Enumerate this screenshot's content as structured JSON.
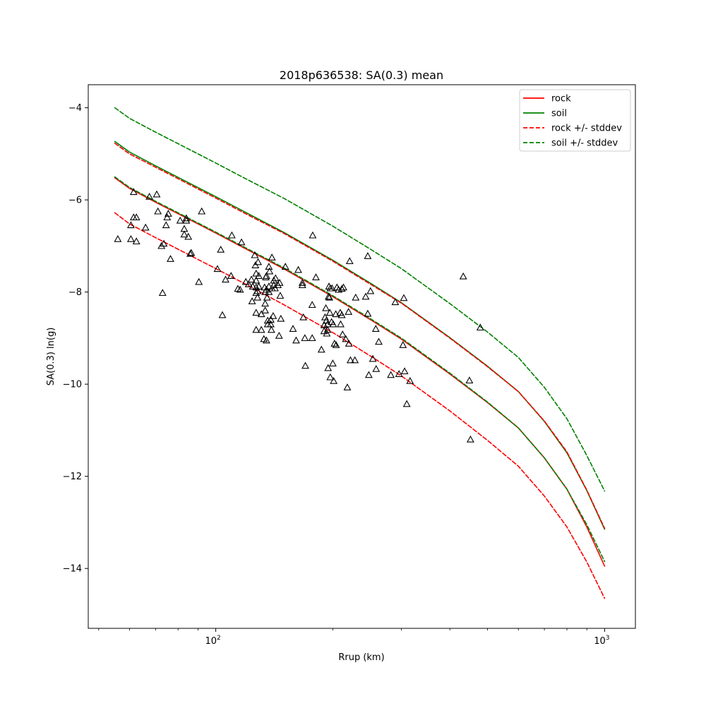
{
  "chart_data": {
    "type": "line",
    "title": "2018p636538: SA(0.3) mean",
    "xlabel": "Rrup (km)",
    "ylabel": "SA(0.3) ln(g)",
    "xscale": "log",
    "xlim": [
      47,
      1200
    ],
    "ylim": [
      -15.3,
      -3.5
    ],
    "x_ticks": [
      {
        "value": 100,
        "label": "10",
        "exp": "2"
      },
      {
        "value": 1000,
        "label": "10",
        "exp": "3"
      }
    ],
    "y_ticks": [
      -4,
      -6,
      -8,
      -10,
      -12,
      -14
    ],
    "y_tick_labels": [
      "−4",
      "−6",
      "−8",
      "−10",
      "−12",
      "−14"
    ],
    "legend_position": "upper right",
    "grid": false,
    "series": [
      {
        "name": "rock",
        "color": "#ff0000",
        "dash": "solid",
        "x": [
          55,
          60,
          70,
          80,
          100,
          120,
          150,
          200,
          250,
          300,
          400,
          500,
          600,
          700,
          800,
          900,
          1000
        ],
        "y": [
          -5.52,
          -5.75,
          -6.05,
          -6.3,
          -6.72,
          -7.07,
          -7.5,
          -8.1,
          -8.6,
          -9.02,
          -9.78,
          -10.4,
          -10.95,
          -11.6,
          -12.28,
          -13.1,
          -13.95
        ]
      },
      {
        "name": "soil",
        "color": "#008000",
        "dash": "solid",
        "x": [
          55,
          60,
          70,
          80,
          100,
          120,
          150,
          200,
          250,
          300,
          400,
          500,
          600,
          700,
          800,
          900,
          1000
        ],
        "y": [
          -4.73,
          -4.96,
          -5.26,
          -5.51,
          -5.93,
          -6.28,
          -6.71,
          -7.31,
          -7.81,
          -8.23,
          -8.99,
          -9.61,
          -10.16,
          -10.81,
          -11.49,
          -12.31,
          -13.15
        ]
      },
      {
        "name": "rock +/- stddev",
        "color": "#ff0000",
        "dash": "dashed",
        "x": [
          55,
          60,
          70,
          80,
          100,
          120,
          150,
          200,
          250,
          300,
          400,
          500,
          600,
          700,
          800,
          900,
          1000
        ],
        "y": [
          -6.28,
          -6.52,
          -6.82,
          -7.07,
          -7.49,
          -7.84,
          -8.28,
          -8.88,
          -9.39,
          -9.82,
          -10.58,
          -11.22,
          -11.78,
          -12.43,
          -13.1,
          -13.86,
          -14.65
        ]
      },
      {
        "name": "",
        "color": "#ff0000",
        "dash": "dashed",
        "x": [
          55,
          60,
          70,
          80,
          100,
          120,
          150,
          200,
          250,
          300,
          400,
          500,
          600,
          700,
          800,
          900,
          1000
        ],
        "y": [
          -4.77,
          -5.0,
          -5.29,
          -5.54,
          -5.96,
          -6.31,
          -6.73,
          -7.33,
          -7.83,
          -8.24,
          -9.0,
          -9.62,
          -10.16,
          -10.8,
          -11.47,
          -12.3,
          -13.13
        ]
      },
      {
        "name": "soil +/- stddev",
        "color": "#008000",
        "dash": "dashed",
        "x": [
          55,
          60,
          70,
          80,
          100,
          120,
          150,
          200,
          250,
          300,
          400,
          500,
          600,
          700,
          800,
          900,
          1000
        ],
        "y": [
          -4.0,
          -4.23,
          -4.53,
          -4.78,
          -5.2,
          -5.55,
          -5.97,
          -6.57,
          -7.07,
          -7.49,
          -8.25,
          -8.87,
          -9.42,
          -10.07,
          -10.75,
          -11.55,
          -12.32
        ]
      },
      {
        "name": "",
        "color": "#008000",
        "dash": "dashed",
        "x": [
          55,
          60,
          70,
          80,
          100,
          120,
          150,
          200,
          250,
          300,
          400,
          500,
          600,
          700,
          800,
          900,
          1000
        ],
        "y": [
          -5.5,
          -5.73,
          -6.03,
          -6.28,
          -6.7,
          -7.05,
          -7.48,
          -8.08,
          -8.58,
          -9.0,
          -9.76,
          -10.39,
          -10.95,
          -11.6,
          -12.28,
          -13.05,
          -13.85
        ]
      }
    ],
    "observations": [
      [
        56,
        -6.85
      ],
      [
        60.5,
        -6.55
      ],
      [
        60.5,
        -6.85
      ],
      [
        61.5,
        -5.83
      ],
      [
        61.5,
        -6.38
      ],
      [
        62.5,
        -6.38
      ],
      [
        62.5,
        -6.9
      ],
      [
        66,
        -6.6
      ],
      [
        67.5,
        -5.93
      ],
      [
        70.5,
        -5.88
      ],
      [
        71,
        -6.25
      ],
      [
        72.5,
        -7.0
      ],
      [
        73,
        -8.02
      ],
      [
        73.5,
        -6.95
      ],
      [
        74.5,
        -6.55
      ],
      [
        75,
        -6.38
      ],
      [
        75.5,
        -6.3
      ],
      [
        76.5,
        -7.28
      ],
      [
        81,
        -6.45
      ],
      [
        83,
        -6.75
      ],
      [
        83,
        -6.63
      ],
      [
        84,
        -6.4
      ],
      [
        84,
        -6.45
      ],
      [
        85,
        -6.8
      ],
      [
        86,
        -7.17
      ],
      [
        86.5,
        -7.15
      ],
      [
        90.5,
        -7.78
      ],
      [
        92,
        -6.25
      ],
      [
        101,
        -7.5
      ],
      [
        103,
        -7.08
      ],
      [
        104,
        -8.5
      ],
      [
        106,
        -7.73
      ],
      [
        109.5,
        -7.65
      ],
      [
        110,
        -6.77
      ],
      [
        114,
        -7.93
      ],
      [
        115.5,
        -7.95
      ],
      [
        116.5,
        -6.92
      ],
      [
        119.5,
        -7.78
      ],
      [
        121.5,
        -7.83
      ],
      [
        123.5,
        -7.73
      ],
      [
        124,
        -8.2
      ],
      [
        124.5,
        -7.88
      ],
      [
        126,
        -7.2
      ],
      [
        126.5,
        -7.42
      ],
      [
        127,
        -7.6
      ],
      [
        127,
        -7.75
      ],
      [
        127,
        -7.9
      ],
      [
        127,
        -8.02
      ],
      [
        127,
        -8.45
      ],
      [
        127,
        -8.82
      ],
      [
        128,
        -7.98
      ],
      [
        128,
        -8.12
      ],
      [
        128.5,
        -7.35
      ],
      [
        129,
        -7.65
      ],
      [
        129,
        -7.88
      ],
      [
        131,
        -8.48
      ],
      [
        131,
        -8.82
      ],
      [
        133,
        -9.02
      ],
      [
        133.5,
        -7.9
      ],
      [
        134,
        -8.0
      ],
      [
        134,
        -8.25
      ],
      [
        134,
        -8.4
      ],
      [
        134.5,
        -7.68
      ],
      [
        135,
        -7.65
      ],
      [
        135,
        -7.95
      ],
      [
        135,
        -9.05
      ],
      [
        135.5,
        -8.12
      ],
      [
        136,
        -8.62
      ],
      [
        136,
        -8.7
      ],
      [
        137,
        -7.45
      ],
      [
        137,
        -7.88
      ],
      [
        137,
        -8.0
      ],
      [
        137.5,
        -7.55
      ],
      [
        138.5,
        -8.6
      ],
      [
        138.5,
        -8.7
      ],
      [
        139,
        -8.82
      ],
      [
        139.5,
        -7.25
      ],
      [
        139.5,
        -7.92
      ],
      [
        140.5,
        -8.52
      ],
      [
        141,
        -7.75
      ],
      [
        141,
        -7.85
      ],
      [
        142,
        -7.92
      ],
      [
        142.5,
        -7.7
      ],
      [
        144.5,
        -7.85
      ],
      [
        145.5,
        -8.95
      ],
      [
        146,
        -7.8
      ],
      [
        146.5,
        -8.08
      ],
      [
        147,
        -8.58
      ],
      [
        151,
        -7.45
      ],
      [
        158,
        -8.8
      ],
      [
        161,
        -9.05
      ],
      [
        163,
        -7.52
      ],
      [
        167,
        -7.85
      ],
      [
        167,
        -7.8
      ],
      [
        168,
        -8.55
      ],
      [
        169.5,
        -9.0
      ],
      [
        170,
        -9.6
      ],
      [
        177,
        -8.28
      ],
      [
        177,
        -9.0
      ],
      [
        177.5,
        -6.77
      ],
      [
        181,
        -7.68
      ],
      [
        187,
        -9.25
      ],
      [
        190,
        -8.72
      ],
      [
        190,
        -8.85
      ],
      [
        191,
        -8.55
      ],
      [
        192,
        -8.35
      ],
      [
        192.5,
        -8.62
      ],
      [
        193,
        -8.9
      ],
      [
        194,
        -8.82
      ],
      [
        194,
        -8.7
      ],
      [
        194.5,
        -9.65
      ],
      [
        195,
        -8.1
      ],
      [
        195.5,
        -7.88
      ],
      [
        196,
        -8.12
      ],
      [
        196.5,
        -8.45
      ],
      [
        197,
        -7.92
      ],
      [
        197,
        -9.85
      ],
      [
        198.5,
        -8.65
      ],
      [
        199,
        -7.92
      ],
      [
        200,
        -9.55
      ],
      [
        200.5,
        -8.7
      ],
      [
        201,
        -9.93
      ],
      [
        202,
        -9.12
      ],
      [
        203.5,
        -8.48
      ],
      [
        204,
        -9.15
      ],
      [
        205,
        -7.9
      ],
      [
        207,
        -7.95
      ],
      [
        209,
        -8.45
      ],
      [
        209.5,
        -8.7
      ],
      [
        211,
        -7.93
      ],
      [
        211,
        -8.5
      ],
      [
        212,
        -8.92
      ],
      [
        213,
        -7.9
      ],
      [
        216,
        -9.02
      ],
      [
        218,
        -10.07
      ],
      [
        219.5,
        -8.43
      ],
      [
        220,
        -9.12
      ],
      [
        221,
        -7.33
      ],
      [
        222,
        -9.48
      ],
      [
        228,
        -9.48
      ],
      [
        229,
        -8.12
      ],
      [
        243,
        -8.1
      ],
      [
        246,
        -7.22
      ],
      [
        246,
        -8.47
      ],
      [
        247.5,
        -9.8
      ],
      [
        250,
        -7.98
      ],
      [
        253.5,
        -9.45
      ],
      [
        258,
        -8.8
      ],
      [
        262.5,
        -9.08
      ],
      [
        282,
        -9.8
      ],
      [
        289.5,
        -8.22
      ],
      [
        296,
        -9.78
      ],
      [
        303,
        -9.15
      ],
      [
        304.5,
        -8.13
      ],
      [
        306,
        -9.72
      ],
      [
        316,
        -9.93
      ],
      [
        433,
        -7.66
      ],
      [
        449,
        -9.92
      ],
      [
        452,
        -11.2
      ],
      [
        479,
        -8.77
      ],
      [
        258.5,
        -9.67
      ],
      [
        310,
        -10.43
      ]
    ],
    "legend": [
      {
        "label": "rock",
        "color": "#ff0000",
        "dash": "solid"
      },
      {
        "label": "soil",
        "color": "#008000",
        "dash": "solid"
      },
      {
        "label": "rock +/- stddev",
        "color": "#ff0000",
        "dash": "dashed"
      },
      {
        "label": "soil +/- stddev",
        "color": "#008000",
        "dash": "dashed"
      }
    ]
  }
}
